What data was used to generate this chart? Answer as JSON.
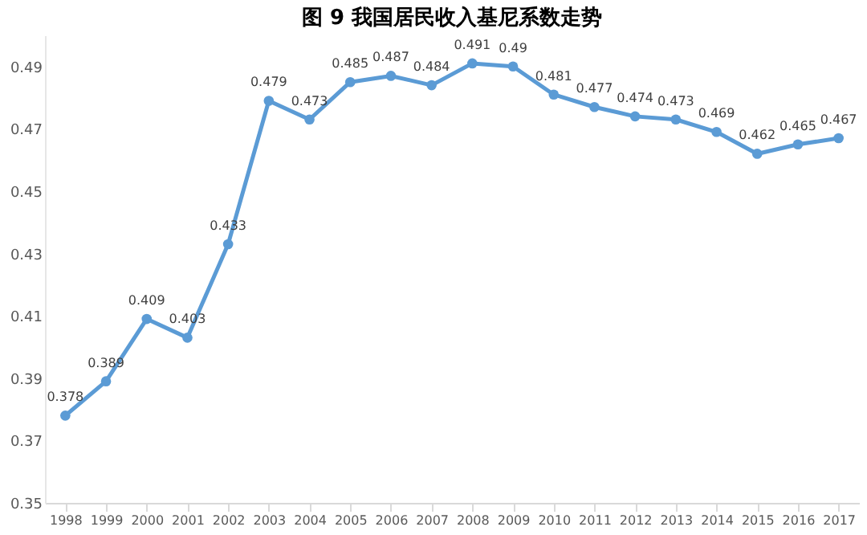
{
  "chart_data": {
    "type": "line",
    "title": "图 9    我国居民收入基尼系数走势",
    "categories": [
      "1998",
      "1999",
      "2000",
      "2001",
      "2002",
      "2003",
      "2004",
      "2005",
      "2006",
      "2007",
      "2008",
      "2009",
      "2010",
      "2011",
      "2012",
      "2013",
      "2014",
      "2015",
      "2016",
      "2017"
    ],
    "series": [
      {
        "color": "#5b9bd5",
        "values": [
          0.378,
          0.389,
          0.409,
          0.403,
          0.433,
          0.479,
          0.473,
          0.485,
          0.487,
          0.484,
          0.491,
          0.49,
          0.481,
          0.477,
          0.474,
          0.473,
          0.469,
          0.462,
          0.465,
          0.467
        ]
      }
    ],
    "ylim": [
      0.35,
      0.5
    ],
    "yticks": [
      0.35,
      0.37,
      0.39,
      0.41,
      0.43,
      0.45,
      0.47,
      0.49
    ],
    "marker": "circle",
    "line_style": "solid",
    "data_labels": true,
    "grid": false
  }
}
